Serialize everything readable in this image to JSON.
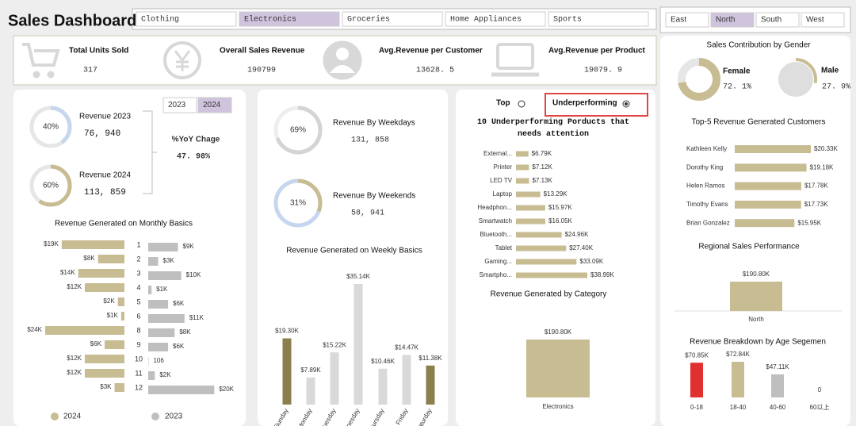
{
  "header": {
    "title": "Sales Dashboard"
  },
  "category_slicer": {
    "items": [
      "Clothing",
      "Electronics",
      "Groceries",
      "Home Appliances",
      "Sports"
    ],
    "selected": "Electronics"
  },
  "region_slicer": {
    "items": [
      "East",
      "North",
      "South",
      "West"
    ],
    "selected": "North"
  },
  "year_slicer": {
    "items": [
      "2023",
      "2024"
    ],
    "selected": "2024"
  },
  "kpis": [
    {
      "label": "Total Units Sold",
      "value": 317
    },
    {
      "label": "Overall Sales Revenue",
      "value": 190799
    },
    {
      "label": "Avg.Revenue per Customer",
      "value": "13628. 5"
    },
    {
      "label": "Avg.Revenue per Product",
      "value": "19079. 9"
    }
  ],
  "revenue_panel": {
    "years": [
      {
        "label": "Revenue 2023",
        "percent": 40,
        "percent_label": "40%",
        "amount": "76, 940",
        "color": "#c5d6ee"
      },
      {
        "label": "Revenue 2024",
        "percent": 60,
        "percent_label": "60%",
        "amount": "113, 859",
        "color": "#c8bc93"
      }
    ],
    "yoy_label": "%YoY Chage",
    "yoy_value": "47. 98%"
  },
  "weekday_panel": {
    "items": [
      {
        "label": "Revenue By Weekdays",
        "percent": 69,
        "percent_label": "69%",
        "amount": "131, 858",
        "color": "#d4d4d4"
      },
      {
        "label": "Revenue By Weekends",
        "percent": 31,
        "percent_label": "31%",
        "amount": "58, 941",
        "color": "#c8bc93"
      }
    ]
  },
  "chart_data": [
    {
      "type": "diverging_bar",
      "title": "Revenue Generated on Monthly Basics",
      "categories": [
        "1",
        "2",
        "3",
        "4",
        "5",
        "6",
        "8",
        "9",
        "10",
        "11",
        "12"
      ],
      "series": [
        {
          "name": "2024",
          "color": "#c8bc93",
          "values": [
            19000,
            8000,
            14000,
            12000,
            2000,
            1000,
            24000,
            6000,
            12000,
            12000,
            3000
          ],
          "value_labels": [
            "$19K",
            "$8K",
            "$14K",
            "$12K",
            "$2K",
            "$1K",
            "$24K",
            "$6K",
            "$12K",
            "$12K",
            "$3K"
          ]
        },
        {
          "name": "2023",
          "color": "#bfbfbf",
          "values": [
            9000,
            3000,
            10000,
            1000,
            6000,
            11000,
            8000,
            6000,
            106,
            2000,
            20000
          ],
          "value_labels": [
            "$9K",
            "$3K",
            "$10K",
            "$1K",
            "$6K",
            "$11K",
            "$8K",
            "$6K",
            "106",
            "$2K",
            "$20K"
          ]
        }
      ]
    },
    {
      "type": "column",
      "title": "Revenue Generated on Weekly Basics",
      "categories": [
        "Sunday",
        "Monday",
        "Tuesday",
        "Wednesday",
        "Thursday",
        "Friday",
        "Saturday"
      ],
      "values": [
        19300,
        7890,
        15220,
        35140,
        10460,
        14470,
        11380
      ],
      "value_labels": [
        "$19.30K",
        "$7.89K",
        "$15.22K",
        "$35.14K",
        "$10.46K",
        "$14.47K",
        "$11.38K"
      ],
      "colors": [
        "#8c7f4e",
        "#d9d9d9",
        "#d9d9d9",
        "#d9d9d9",
        "#d9d9d9",
        "#d9d9d9",
        "#8c7f4e"
      ]
    },
    {
      "type": "hbar",
      "title": "10 Underperforming  Porducts that needs attention",
      "options": [
        "Top",
        "Underperforming"
      ],
      "selected": "Underperforming",
      "categories": [
        "External...",
        "Printer",
        "LED TV",
        "Laptop",
        "Headphon...",
        "Smartwatch",
        "Bluetooth...",
        "Tablet",
        "Gaming...",
        "Smartpho..."
      ],
      "values": [
        6790,
        7120,
        7130,
        13290,
        15970,
        16050,
        24960,
        27400,
        33090,
        38990
      ],
      "value_labels": [
        "$6.79K",
        "$7.12K",
        "$7.13K",
        "$13.29K",
        "$15.97K",
        "$16.05K",
        "$24.96K",
        "$27.40K",
        "$33.09K",
        "$38.99K"
      ],
      "color": "#c8bc93"
    },
    {
      "type": "column",
      "title": "Revenue Generated by Category",
      "categories": [
        "Electronics"
      ],
      "values": [
        190800
      ],
      "value_labels": [
        "$190.80K"
      ],
      "colors": [
        "#c8bc93"
      ]
    },
    {
      "type": "donut",
      "title": "Sales Contribution by Gender",
      "categories": [
        "Female",
        "Male"
      ],
      "values": [
        72.1,
        27.9
      ],
      "value_labels": [
        "72. 1%",
        "27. 9%"
      ],
      "colors": [
        "#c8bc93",
        "#c8bc93"
      ]
    },
    {
      "type": "hbar",
      "title": "Top-5 Revenue Generated Customers",
      "categories": [
        "Kathleen Kelly",
        "Dorothy King",
        "Helen Ramos",
        "Timothy Evans",
        "Brian Gonzalez"
      ],
      "values": [
        20330,
        19180,
        17780,
        17730,
        15950
      ],
      "value_labels": [
        "$20.33K",
        "$19.18K",
        "$17.78K",
        "$17.73K",
        "$15.95K"
      ],
      "color": "#c8bc93"
    },
    {
      "type": "column",
      "title": "Regional Sales Performance",
      "categories": [
        "North"
      ],
      "values": [
        190800
      ],
      "value_labels": [
        "$190.80K"
      ],
      "colors": [
        "#c8bc93"
      ]
    },
    {
      "type": "column",
      "title": "Revenue Breakdown by Age Segemen",
      "categories": [
        "0-18",
        "18-40",
        "40-60",
        "60以上"
      ],
      "values": [
        70850,
        72840,
        47110,
        0
      ],
      "value_labels": [
        "$70.85K",
        "$72.84K",
        "$47.11K",
        "0"
      ],
      "colors": [
        "#e03030",
        "#c8bc93",
        "#bfbfbf",
        "#bfbfbf"
      ]
    }
  ]
}
